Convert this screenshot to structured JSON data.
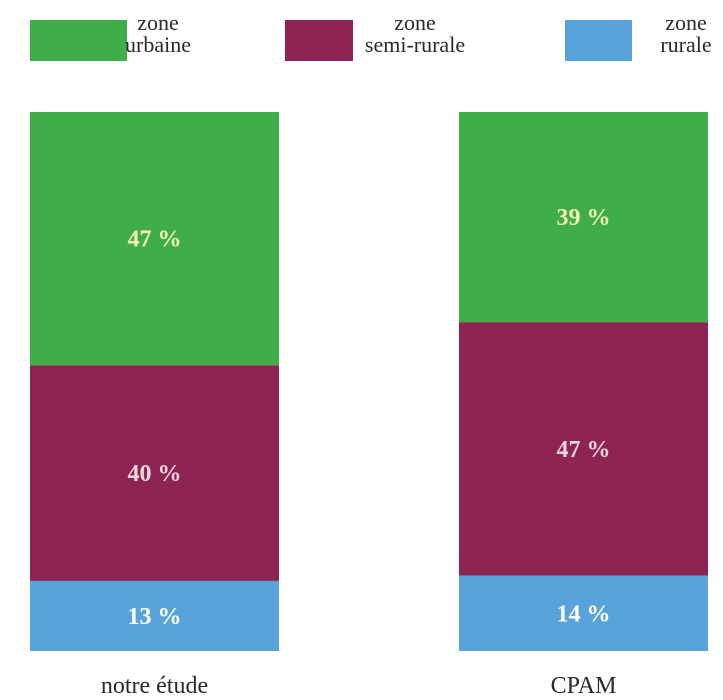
{
  "chart_data": {
    "type": "bar",
    "stacked": true,
    "normalized_percent": true,
    "categories": [
      "notre étude",
      "CPAM"
    ],
    "series": [
      {
        "name": "zone urbaine",
        "legend_lines": [
          "zone",
          "urbaine"
        ],
        "values": [
          47,
          39
        ],
        "labels": [
          "47 %",
          "39 %"
        ],
        "color": "#3fae49",
        "label_color": "#f3efb0"
      },
      {
        "name": "zone semi-rurale",
        "legend_lines": [
          "zone",
          "semi-rurale"
        ],
        "values": [
          40,
          47
        ],
        "labels": [
          "40 %",
          "47 %"
        ],
        "color": "#8e2454",
        "label_color": "#efd6d6"
      },
      {
        "name": "zone rurale",
        "legend_lines": [
          "zone",
          "rurale"
        ],
        "values": [
          13,
          14
        ],
        "labels": [
          "13 %",
          "14 %"
        ],
        "color": "#58a3d9",
        "label_color": "#ffffff"
      }
    ],
    "legend_position": "top",
    "title": "",
    "xlabel": "",
    "ylabel": ""
  }
}
